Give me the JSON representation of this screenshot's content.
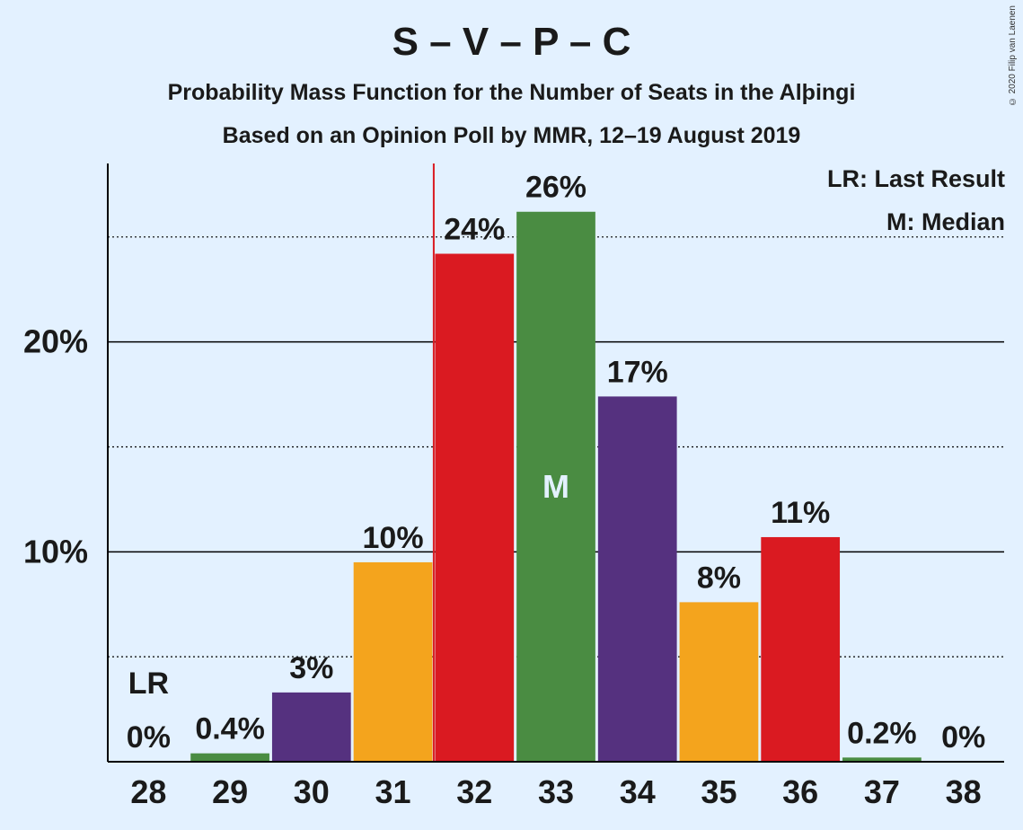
{
  "header": {
    "title": "S – V – P – C",
    "subtitle1": "Probability Mass Function for the Number of Seats in the Alþingi",
    "subtitle2": "Based on an Opinion Poll by MMR, 12–19 August 2019"
  },
  "legend": {
    "last_result": "LR: Last Result",
    "median": "M: Median"
  },
  "copyright": "© 2020 Filip van Laenen",
  "chart_data": {
    "type": "bar",
    "title": "S – V – P – C",
    "xlabel": "",
    "ylabel": "",
    "categories": [
      "28",
      "29",
      "30",
      "31",
      "32",
      "33",
      "34",
      "35",
      "36",
      "37",
      "38"
    ],
    "values": [
      0,
      0.4,
      3.3,
      9.5,
      24.2,
      26.2,
      17.4,
      7.6,
      10.7,
      0.2,
      0
    ],
    "value_labels": [
      "0%",
      "0.4%",
      "3%",
      "10%",
      "24%",
      "26%",
      "17%",
      "8%",
      "11%",
      "0.2%",
      "0%"
    ],
    "bar_colors": [
      "#4a8c42",
      "#4a8c42",
      "#55317f",
      "#f4a41d",
      "#da1a21",
      "#4a8c42",
      "#55317f",
      "#f4a41d",
      "#da1a21",
      "#4a8c42",
      "#55317f"
    ],
    "ylim": [
      0,
      28.5
    ],
    "y_ticks": [
      {
        "value": 10,
        "label": "10%"
      },
      {
        "value": 20,
        "label": "20%"
      }
    ],
    "minor_gridlines": [
      5,
      15,
      25
    ],
    "last_result": {
      "seat": "28",
      "label": "LR",
      "line_between": [
        "31",
        "32"
      ],
      "line_color": "#da1a21"
    },
    "median": {
      "seat": "33",
      "label": "M"
    },
    "grid": true,
    "legend_position": "top-right"
  }
}
